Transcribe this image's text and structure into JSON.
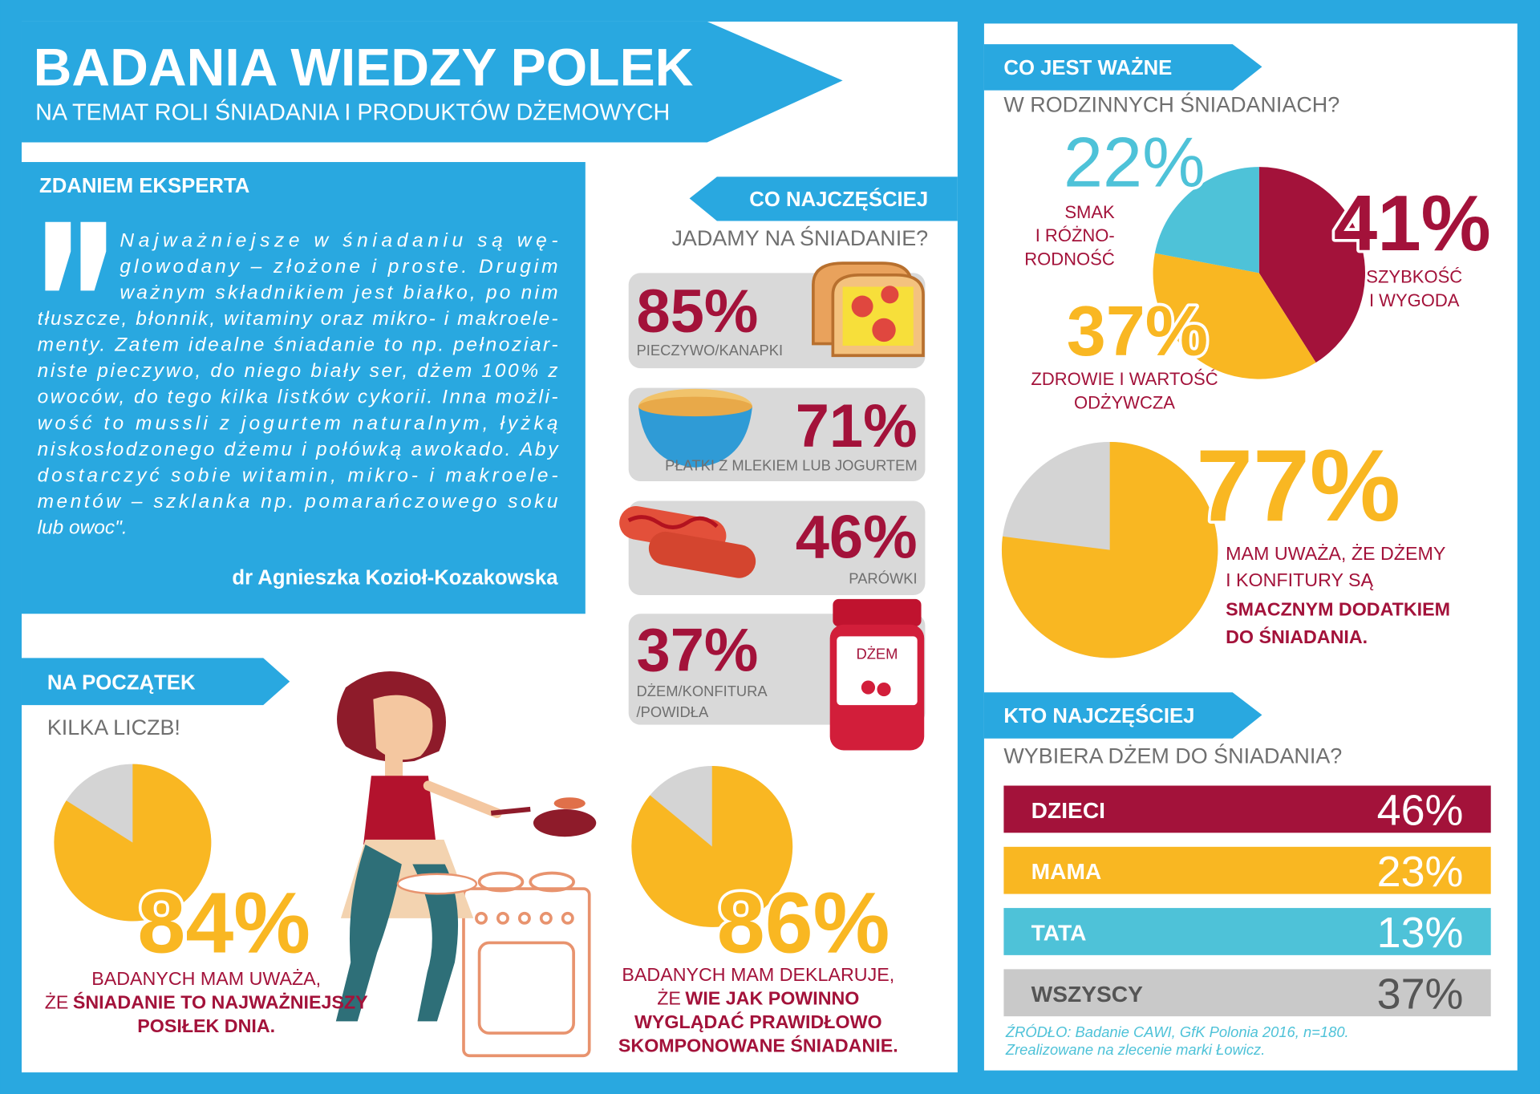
{
  "header": {
    "title": "BADANIA WIEDZY POLEK",
    "subtitle": "NA TEMAT ROLI ŚNIADANIA I PRODUKTÓW DŻEMOWYCH"
  },
  "expert": {
    "heading": "ZDANIEM EKSPERTA",
    "quote_lines": [
      "Najważniejsze w śniadaniu są wę-",
      "glowodany – złożone i proste. Drugim",
      "ważnym składnikiem jest białko, po nim",
      "tłuszcze, błonnik, witaminy oraz mikro- i makroele-",
      "menty. Zatem idealne śniadanie to np. pełnoziar-",
      "niste pieczywo, do niego biały ser, dżem 100% z",
      "owoców, do tego kilka listków cykorii. Inna możli-",
      "wość to mussli z jogurtem naturalnym, łyżką",
      "niskosłodzonego dżemu i połówką awokado. Aby",
      "dostarczyć sobie witamin, mikro- i makroele-",
      "mentów – szklanka np. pomarańczowego soku",
      "lub owoc\"."
    ],
    "author": "dr Agnieszka Kozioł-Kozakowska"
  },
  "foods": {
    "heading": "CO NAJCZĘŚCIEJ",
    "question": "JADAMY NA ŚNIADANIE?",
    "items": [
      {
        "value_label": "85%",
        "label_lines": [
          "PIECZYWO/KANAPKI"
        ]
      },
      {
        "value_label": "71%",
        "label_lines": [
          "PŁATKI Z MLEKIEM LUB JOGURTEM"
        ]
      },
      {
        "value_label": "46%",
        "label_lines": [
          "PARÓWKI"
        ]
      },
      {
        "value_label": "37%",
        "label_lines": [
          "DŻEM/KONFITURA",
          "/POWIDŁA"
        ]
      }
    ],
    "jar_label": "DŻEM"
  },
  "start": {
    "heading": "NA POCZĄTEK",
    "subheading": "KILKA LICZB!"
  },
  "chart_data": [
    {
      "type": "pie",
      "title": "CO JEST WAŻNE",
      "subtitle": "W RODZINNYCH ŚNIADANIACH?",
      "values": [
        41,
        37,
        22
      ],
      "value_labels": [
        "41%",
        "37%",
        "22%"
      ],
      "category_lines": [
        [
          "SZYBKOŚĆ",
          "I WYGODA"
        ],
        [
          "ZDROWIE I WARTOŚĆ",
          "ODŻYWCZA"
        ],
        [
          "SMAK",
          "I RÓŻNO-",
          "RODNOŚĆ"
        ]
      ],
      "colors": [
        "#a3123a",
        "#f9b722",
        "#4ec2d8"
      ]
    },
    {
      "type": "pie",
      "values": [
        77
      ],
      "value_labels": [
        "77%"
      ],
      "colors": [
        "#f9b722"
      ],
      "rest_color": "#d4d4d4",
      "caption_normal": [
        "MAM UWAŻA, ŻE DŻEMY",
        "I KONFITURY SĄ"
      ],
      "caption_bold": [
        "SMACZNYM DODATKIEM",
        "DO ŚNIADANIA."
      ]
    },
    {
      "type": "pie",
      "values": [
        84
      ],
      "value_labels": [
        "84%"
      ],
      "colors": [
        "#f9b722"
      ],
      "rest_color": "#d4d4d4",
      "caption_normal": [
        "BADANYCH MAM UWAŻA,",
        "ŻE"
      ],
      "caption_bold": [
        "ŚNIADANIE TO NAJWAŻNIEJSZY",
        "POSIŁEK DNIA."
      ]
    },
    {
      "type": "pie",
      "values": [
        86
      ],
      "value_labels": [
        "86%"
      ],
      "colors": [
        "#f9b722"
      ],
      "rest_color": "#d4d4d4",
      "caption_normal": [
        "BADANYCH MAM DEKLARUJE,",
        "ŻE"
      ],
      "caption_bold": [
        "WIE JAK POWINNO",
        "WYGLĄDAĆ PRAWIDŁOWO",
        "SKOMPONOWANE ŚNIADANIE."
      ]
    }
  ],
  "who": {
    "heading": "KTO NAJCZĘŚCIEJ",
    "question": "WYBIERA DŻEM DO ŚNIADANIA?",
    "rows": [
      {
        "label": "DZIECI",
        "value_label": "46%",
        "color": "#a3123a",
        "text_color": "#ffffff"
      },
      {
        "label": "MAMA",
        "value_label": "23%",
        "color": "#f9b722",
        "text_color": "#ffffff"
      },
      {
        "label": "TATA",
        "value_label": "13%",
        "color": "#4ec2d8",
        "text_color": "#ffffff"
      },
      {
        "label": "WSZYSCY",
        "value_label": "37%",
        "color": "#c9c9c9",
        "text_color": "#555555"
      }
    ],
    "source_lines": [
      "ŹRÓDŁO: Badanie CAWI, GfK Polonia 2016, n=180.",
      "Zrealizowane na zlecenie marki Łowicz."
    ]
  }
}
